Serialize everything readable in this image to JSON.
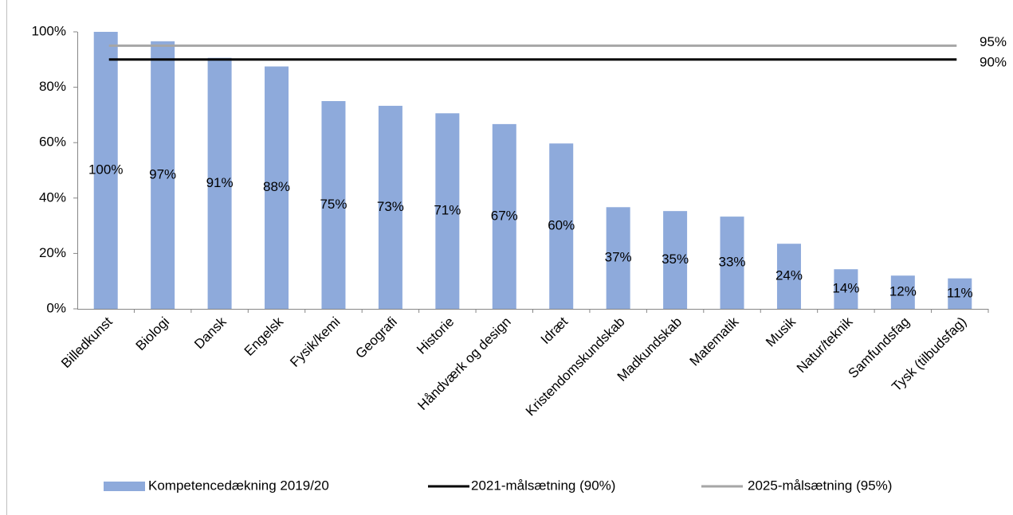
{
  "chart_data": {
    "type": "bar",
    "categories": [
      "Billedkunst",
      "Biologi",
      "Dansk",
      "Engelsk",
      "Fysik/kemi",
      "Geografi",
      "Historie",
      "Håndværk og design",
      "Idræt",
      "Kristendomskundskab",
      "Madkundskab",
      "Matematik",
      "Musik",
      "Natur/teknik",
      "Samfundsfag",
      "Tysk (tilbudsfag)"
    ],
    "values": [
      100,
      96.6,
      90.6,
      87.5,
      75,
      73.3,
      70.6,
      66.7,
      59.7,
      36.7,
      35.3,
      33.3,
      23.5,
      14.3,
      12,
      11
    ],
    "value_labels": [
      "100%",
      "97%",
      "91%",
      "88%",
      "75%",
      "73%",
      "71%",
      "67%",
      "60%",
      "37%",
      "35%",
      "33%",
      "24%",
      "14%",
      "12%",
      "11%"
    ],
    "name": "Kompetencedækning 2019/20",
    "color": "#8eaadb",
    "lines": [
      {
        "name": "2021-målsætning (90%)",
        "color": "#000000",
        "label": "90%",
        "values": [
          90,
          90,
          90,
          90,
          90,
          90,
          90,
          90,
          90,
          90,
          90,
          90,
          90,
          90,
          90,
          90
        ]
      },
      {
        "name": "2025-målsætning (95%)",
        "color": "#a6a6a6",
        "label": "95%",
        "values": [
          95,
          95,
          95,
          95,
          95,
          95,
          95,
          95,
          95,
          95,
          95,
          95,
          95,
          95,
          95,
          95
        ]
      }
    ],
    "ylim": [
      0,
      100
    ],
    "yticks": [
      {
        "value": 0,
        "label": "0%"
      },
      {
        "value": 20,
        "label": "20%"
      },
      {
        "value": 40,
        "label": "40%"
      },
      {
        "value": 60,
        "label": "60%"
      },
      {
        "value": 80,
        "label": "80%"
      },
      {
        "value": 100,
        "label": "100%"
      }
    ],
    "legend": "bottom"
  }
}
